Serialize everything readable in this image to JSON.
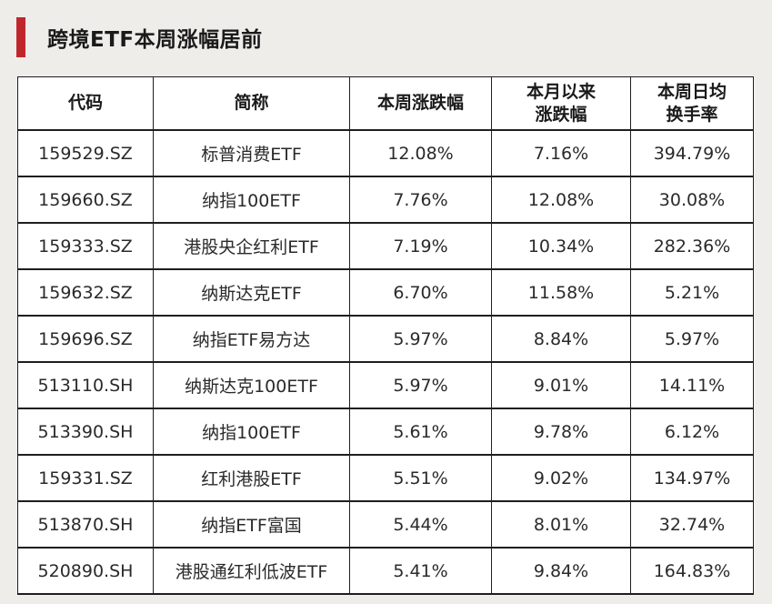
{
  "title": "跨境ETF本周涨幅居前",
  "accent_color": "#c0272d",
  "table": {
    "headers": [
      "代码",
      "简称",
      "本周涨跌幅",
      "本月以来\n涨跌幅",
      "本周日均\n换手率"
    ],
    "header_lines": [
      [
        "代码"
      ],
      [
        "简称"
      ],
      [
        "本周涨跌幅"
      ],
      [
        "本月以来",
        "涨跌幅"
      ],
      [
        "本周日均",
        "换手率"
      ]
    ],
    "rows": [
      [
        "159529.SZ",
        "标普消费ETF",
        "12.08%",
        "7.16%",
        "394.79%"
      ],
      [
        "159660.SZ",
        "纳指100ETF",
        "7.76%",
        "12.08%",
        "30.08%"
      ],
      [
        "159333.SZ",
        "港股央企红利ETF",
        "7.19%",
        "10.34%",
        "282.36%"
      ],
      [
        "159632.SZ",
        "纳斯达克ETF",
        "6.70%",
        "11.58%",
        "5.21%"
      ],
      [
        "159696.SZ",
        "纳指ETF易方达",
        "5.97%",
        "8.84%",
        "5.97%"
      ],
      [
        "513110.SH",
        "纳斯达克100ETF",
        "5.97%",
        "9.01%",
        "14.11%"
      ],
      [
        "513390.SH",
        "纳指100ETF",
        "5.61%",
        "9.78%",
        "6.12%"
      ],
      [
        "159331.SZ",
        "红利港股ETF",
        "5.51%",
        "9.02%",
        "134.97%"
      ],
      [
        "513870.SH",
        "纳指ETF富国",
        "5.44%",
        "8.01%",
        "32.74%"
      ],
      [
        "520890.SH",
        "港股通红利低波ETF",
        "5.41%",
        "9.84%",
        "164.83%"
      ]
    ]
  }
}
